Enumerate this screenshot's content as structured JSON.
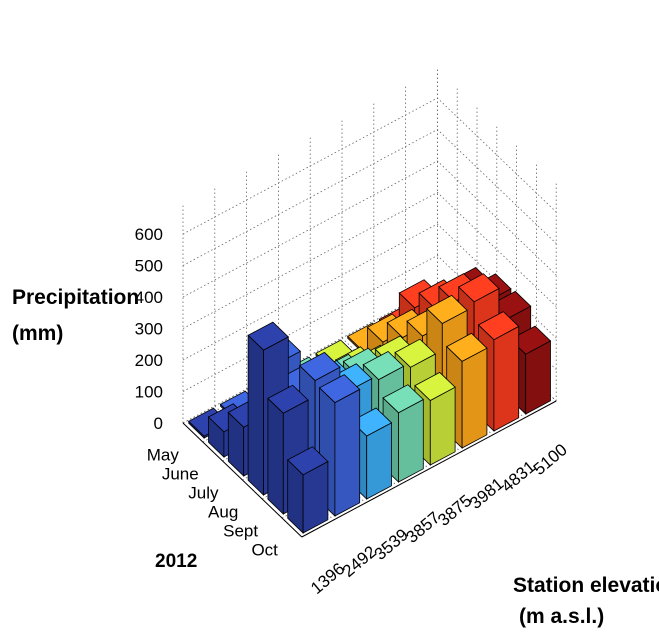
{
  "chart_data": {
    "type": "bar3d",
    "title": "",
    "zlabel": [
      "Precipitation",
      "(mm)"
    ],
    "xlabel": [
      "Station elevation",
      "(m a.s.l.)"
    ],
    "ylabel": "2012",
    "months": [
      "May",
      "June",
      "July",
      "Aug",
      "Sept",
      "Oct"
    ],
    "stations": [
      "1396",
      "2492",
      "3539",
      "3857",
      "3875",
      "3981",
      "4831",
      "5100"
    ],
    "zticks": [
      "0",
      "100",
      "200",
      "300",
      "400",
      "500",
      "600"
    ],
    "zlim": [
      0,
      600
    ],
    "grid": true,
    "colors": [
      "#2a3da0",
      "#3a5fd0",
      "#3aa6ea",
      "#6ecfaa",
      "#c8e23a",
      "#f7a21a",
      "#f03a1e",
      "#8e1010"
    ],
    "values": [
      [
        0,
        80,
        155,
        460,
        320,
        185,
        0,
        0
      ],
      [
        0,
        55,
        300,
        270,
        370,
        360,
        0,
        0
      ],
      [
        0,
        80,
        150,
        230,
        280,
        200,
        0,
        0
      ],
      [
        0,
        50,
        135,
        215,
        265,
        220,
        0,
        0
      ],
      [
        0,
        45,
        110,
        200,
        250,
        205,
        0,
        0
      ],
      [
        0,
        95,
        170,
        235,
        335,
        275,
        0,
        0
      ],
      [
        0,
        150,
        210,
        290,
        350,
        290,
        0,
        0
      ],
      [
        0,
        95,
        195,
        235,
        240,
        190,
        0,
        0
      ]
    ]
  }
}
